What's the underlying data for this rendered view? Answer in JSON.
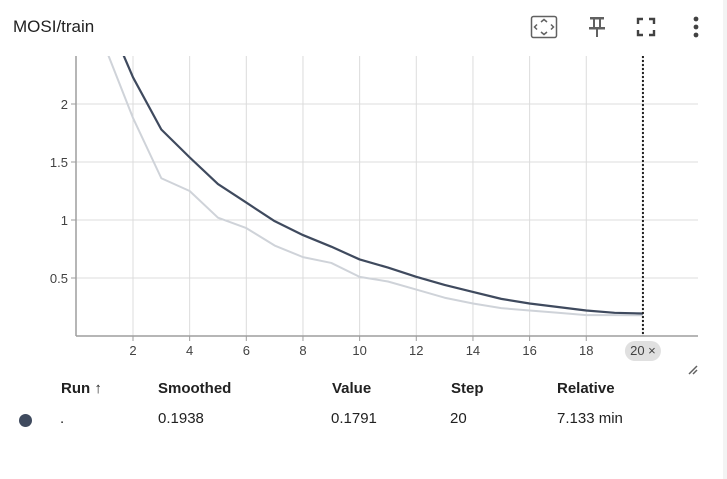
{
  "card": {
    "title": "MOSI/train"
  },
  "toolbar": {
    "icons": [
      "fit-domain-icon",
      "pin-icon",
      "fullscreen-icon",
      "more-vert-icon"
    ]
  },
  "colors": {
    "smoothed_line": "#3f4a5e",
    "raw_line": "#cfd3d9",
    "grid": "#dcdcdc",
    "cursor": "#212121"
  },
  "chart_data": {
    "type": "line",
    "title": "",
    "xlabel": "",
    "ylabel": "",
    "xlim": [
      0,
      22
    ],
    "ylim": [
      0,
      2.4
    ],
    "grid": true,
    "x_ticks": [
      "2",
      "4",
      "6",
      "8",
      "10",
      "12",
      "14",
      "16",
      "18"
    ],
    "y_ticks": [
      "0.5",
      "1",
      "1.5",
      "2"
    ],
    "y_tick_values": [
      0.5,
      1,
      1.5,
      2
    ],
    "x_tick_values": [
      2,
      4,
      6,
      8,
      10,
      12,
      14,
      16,
      18
    ],
    "series": [
      {
        "role": "raw",
        "x": [
          1,
          2,
          3,
          4,
          5,
          6,
          7,
          8,
          9,
          10,
          11,
          12,
          13,
          14,
          15,
          16,
          17,
          18,
          19,
          20
        ],
        "values": [
          2.5,
          1.88,
          1.36,
          1.25,
          1.02,
          0.93,
          0.78,
          0.68,
          0.63,
          0.51,
          0.47,
          0.4,
          0.33,
          0.28,
          0.24,
          0.22,
          0.2,
          0.18,
          0.18,
          0.179
        ]
      },
      {
        "role": "smoothed",
        "x": [
          1,
          2,
          3,
          4,
          5,
          6,
          7,
          8,
          9,
          10,
          11,
          12,
          13,
          14,
          15,
          16,
          17,
          18,
          19,
          20
        ],
        "values": [
          2.8,
          2.23,
          1.78,
          1.54,
          1.31,
          1.15,
          0.99,
          0.87,
          0.77,
          0.66,
          0.59,
          0.51,
          0.44,
          0.38,
          0.32,
          0.28,
          0.25,
          0.22,
          0.2,
          0.194
        ]
      }
    ],
    "cursor_step": 20,
    "cursor_label": "20 ×"
  },
  "table": {
    "headers": {
      "run": "Run ↑",
      "smoothed": "Smoothed",
      "value": "Value",
      "step": "Step",
      "relative": "Relative"
    },
    "rows": [
      {
        "run": ".",
        "smoothed": "0.1938",
        "value": "0.1791",
        "step": "20",
        "relative": "7.133 min",
        "color": "#3f4a5e"
      }
    ]
  }
}
